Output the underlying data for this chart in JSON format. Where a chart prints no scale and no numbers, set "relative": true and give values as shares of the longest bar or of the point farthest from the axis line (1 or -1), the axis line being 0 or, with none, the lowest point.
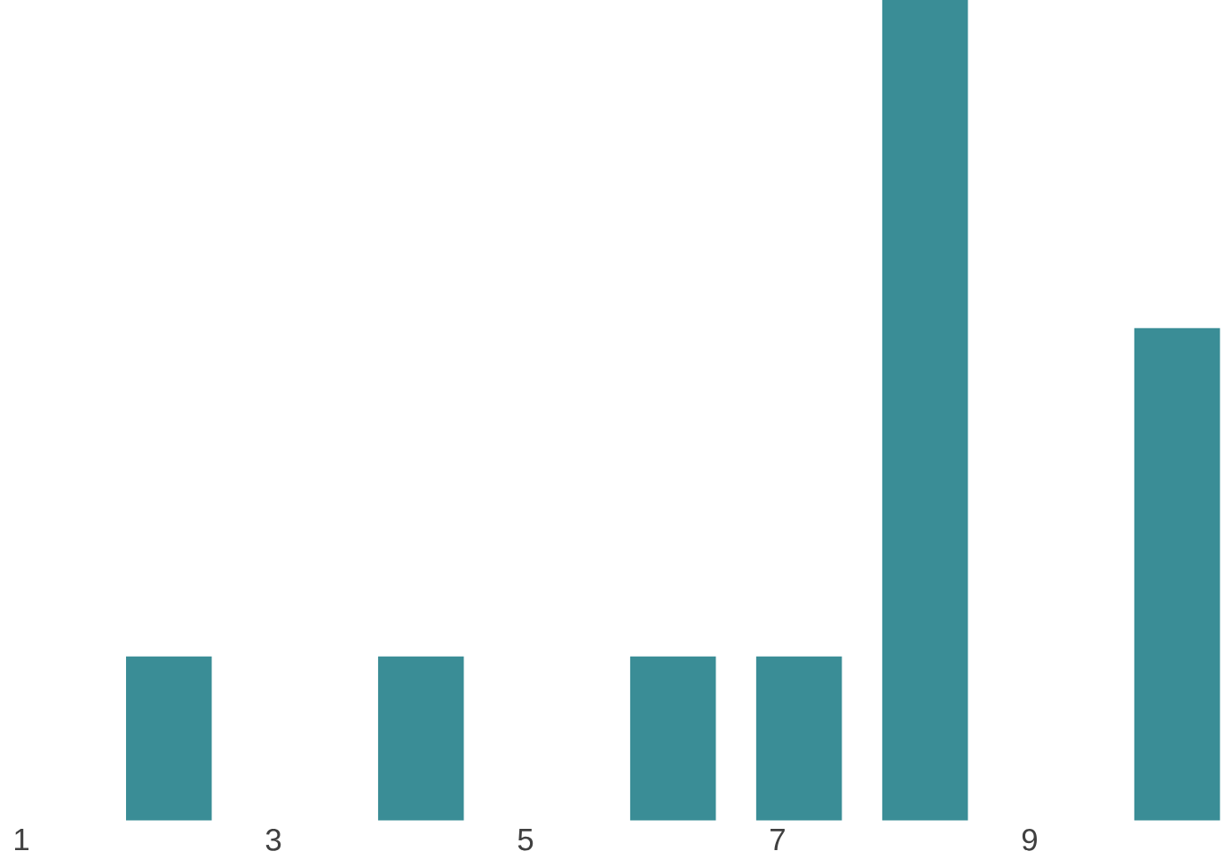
{
  "chart_data": {
    "type": "bar",
    "relative": true,
    "color": "#3a8d96",
    "categories": [
      "1",
      null,
      "3",
      null,
      "5",
      null,
      "7",
      null,
      "9",
      null
    ],
    "values": [
      0,
      0.2,
      0,
      0.2,
      0,
      0.2,
      0.2,
      1,
      0,
      0.6
    ]
  }
}
